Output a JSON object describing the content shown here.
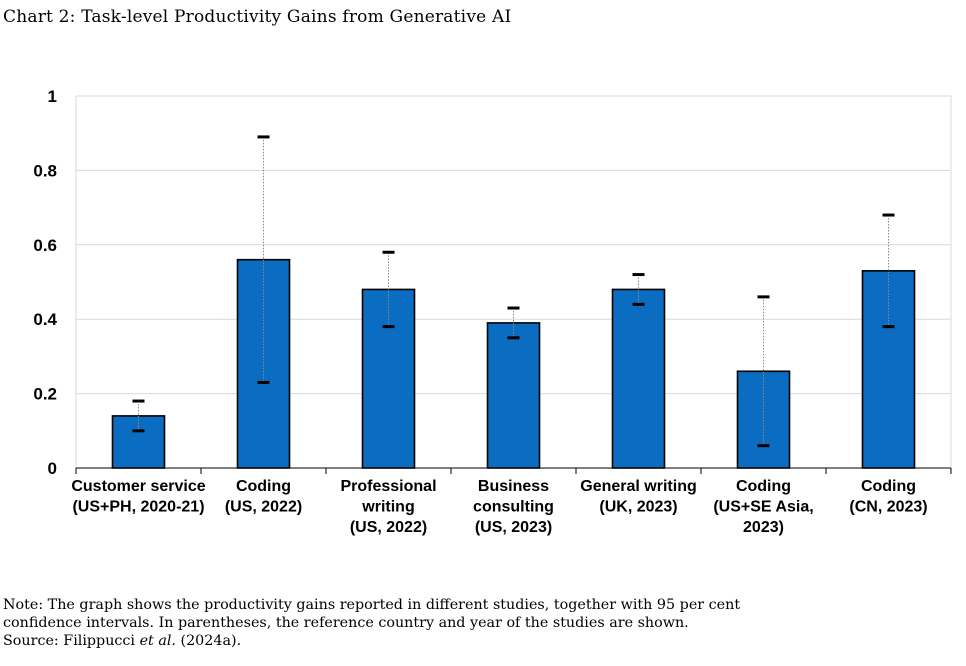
{
  "chart_data": {
    "type": "bar",
    "title": "Chart 2: Task-level Productivity Gains from Generative AI",
    "xlabel": "",
    "ylabel": "",
    "ylim": [
      0,
      1
    ],
    "yticks": [
      0,
      0.2,
      0.4,
      0.6,
      0.8,
      1
    ],
    "ytick_labels": [
      "0",
      "0.2",
      "0.4",
      "0.6",
      "0.8",
      "1"
    ],
    "grid": true,
    "bar_color": "#0B6DC2",
    "categories": [
      [
        "Customer service",
        "(US+PH, 2020-21)"
      ],
      [
        "Coding",
        "(US, 2022)"
      ],
      [
        "Professional",
        "writing",
        "(US, 2022)"
      ],
      [
        "Business",
        "consulting",
        "(US, 2023)"
      ],
      [
        "General writing",
        "(UK, 2023)"
      ],
      [
        "Coding",
        "(US+SE Asia,",
        "2023)"
      ],
      [
        "Coding",
        "(CN, 2023)"
      ]
    ],
    "values": [
      0.14,
      0.56,
      0.48,
      0.39,
      0.48,
      0.26,
      0.53
    ],
    "ci_low": [
      0.1,
      0.23,
      0.38,
      0.35,
      0.44,
      0.06,
      0.38
    ],
    "ci_high": [
      0.18,
      0.89,
      0.58,
      0.43,
      0.52,
      0.46,
      0.68
    ]
  },
  "notes": {
    "line1": "Note: The graph shows the productivity gains reported in different studies, together with 95 per cent",
    "line2": "confidence intervals. In parentheses, the reference country and year of the studies are shown.",
    "source_prefix": "Source: Filippucci ",
    "source_italic": "et al.",
    "source_suffix": " (2024a)."
  }
}
